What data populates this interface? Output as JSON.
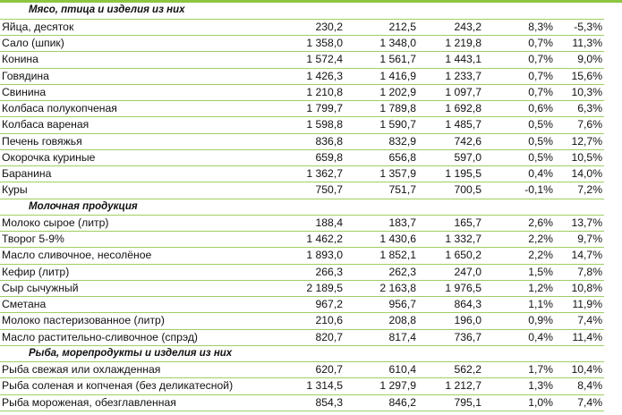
{
  "sections": [
    {
      "title": "Мясо, птица и изделия из них",
      "rows": [
        {
          "name": "Яйца, десяток",
          "v1": "230,2",
          "v2": "212,5",
          "v3": "243,2",
          "p1": "8,3%",
          "p2": "-5,3%"
        },
        {
          "name": "Сало (шпик)",
          "v1": "1 358,0",
          "v2": "1 348,0",
          "v3": "1 219,8",
          "p1": "0,7%",
          "p2": "11,3%"
        },
        {
          "name": "Конина",
          "v1": "1 572,4",
          "v2": "1 561,7",
          "v3": "1 443,1",
          "p1": "0,7%",
          "p2": "9,0%"
        },
        {
          "name": "Говядина",
          "v1": "1 426,3",
          "v2": "1 416,9",
          "v3": "1 233,7",
          "p1": "0,7%",
          "p2": "15,6%"
        },
        {
          "name": "Свинина",
          "v1": "1 210,8",
          "v2": "1 202,9",
          "v3": "1 097,7",
          "p1": "0,7%",
          "p2": "10,3%"
        },
        {
          "name": "Колбаса полукопченая",
          "v1": "1 799,7",
          "v2": "1 789,8",
          "v3": "1 692,8",
          "p1": "0,6%",
          "p2": "6,3%"
        },
        {
          "name": "Колбаса вареная",
          "v1": "1 598,8",
          "v2": "1 590,7",
          "v3": "1 485,7",
          "p1": "0,5%",
          "p2": "7,6%"
        },
        {
          "name": "Печень говяжья",
          "v1": "836,8",
          "v2": "832,9",
          "v3": "742,6",
          "p1": "0,5%",
          "p2": "12,7%"
        },
        {
          "name": "Окорочка куриные",
          "v1": "659,8",
          "v2": "656,8",
          "v3": "597,0",
          "p1": "0,5%",
          "p2": "10,5%"
        },
        {
          "name": "Баранина",
          "v1": "1 362,7",
          "v2": "1 357,9",
          "v3": "1 195,5",
          "p1": "0,4%",
          "p2": "14,0%"
        },
        {
          "name": "Куры",
          "v1": "750,7",
          "v2": "751,7",
          "v3": "700,5",
          "p1": "-0,1%",
          "p2": "7,2%"
        }
      ]
    },
    {
      "title": "Молочная продукция",
      "rows": [
        {
          "name": "Молоко сырое (литр)",
          "v1": "188,4",
          "v2": "183,7",
          "v3": "165,7",
          "p1": "2,6%",
          "p2": "13,7%"
        },
        {
          "name": "Творог 5-9%",
          "v1": "1 462,2",
          "v2": "1 430,6",
          "v3": "1 332,7",
          "p1": "2,2%",
          "p2": "9,7%"
        },
        {
          "name": "Масло сливочное, несолёное",
          "v1": "1 893,0",
          "v2": "1 852,1",
          "v3": "1 650,2",
          "p1": "2,2%",
          "p2": "14,7%"
        },
        {
          "name": "Кефир (литр)",
          "v1": "266,3",
          "v2": "262,3",
          "v3": "247,0",
          "p1": "1,5%",
          "p2": "7,8%"
        },
        {
          "name": "Сыр сычужный",
          "v1": "2 189,5",
          "v2": "2 163,8",
          "v3": "1 976,5",
          "p1": "1,2%",
          "p2": "10,8%"
        },
        {
          "name": "Сметана",
          "v1": "967,2",
          "v2": "956,7",
          "v3": "864,3",
          "p1": "1,1%",
          "p2": "11,9%"
        },
        {
          "name": "Молоко пастеризованное (литр)",
          "v1": "210,6",
          "v2": "208,8",
          "v3": "196,0",
          "p1": "0,9%",
          "p2": "7,4%"
        },
        {
          "name": "Масло растительно-сливочное (спрэд)",
          "v1": "820,7",
          "v2": "817,4",
          "v3": "736,7",
          "p1": "0,4%",
          "p2": "11,4%"
        }
      ]
    },
    {
      "title": "Рыба, морепродукты и изделия из них",
      "rows": [
        {
          "name": "Рыба свежая или охлажденная",
          "v1": "620,7",
          "v2": "610,4",
          "v3": "562,2",
          "p1": "1,7%",
          "p2": "10,4%"
        },
        {
          "name": "Рыба  соленая и копченая (без деликатесной)",
          "v1": "1 314,5",
          "v2": "1 297,9",
          "v3": "1 212,7",
          "p1": "1,3%",
          "p2": "8,4%"
        },
        {
          "name": "Рыба  мороженая, обезглавленная",
          "v1": "854,3",
          "v2": "846,2",
          "v3": "795,1",
          "p1": "1,0%",
          "p2": "7,4%"
        }
      ]
    }
  ]
}
